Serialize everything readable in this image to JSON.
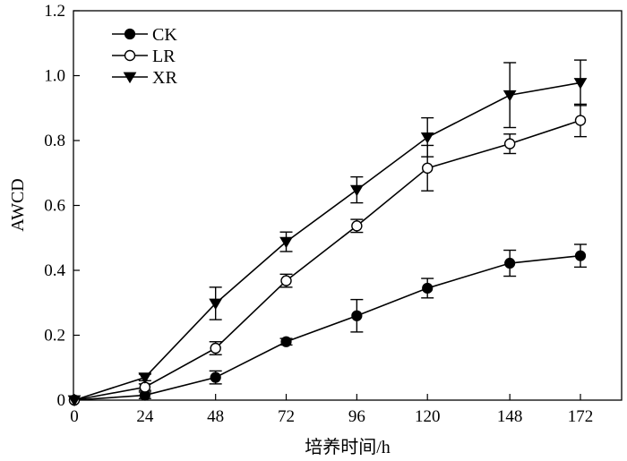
{
  "chart_data": {
    "type": "line",
    "title": "",
    "xlabel": "培养时间/h",
    "ylabel": "AWCD",
    "x": [
      0,
      24,
      48,
      72,
      96,
      120,
      148,
      172
    ],
    "x_tick_labels": [
      "0",
      "24",
      "48",
      "72",
      "96",
      "120",
      "148",
      "172"
    ],
    "ylim": [
      0,
      1.2
    ],
    "y_ticks": [
      0,
      0.2,
      0.4,
      0.6,
      0.8,
      1.0,
      1.2
    ],
    "y_tick_labels": [
      "0",
      "0.2",
      "0.4",
      "0.6",
      "0.8",
      "1.0",
      "1.2"
    ],
    "grid": false,
    "legend_position": "top-left",
    "series": [
      {
        "name": "CK",
        "marker": "filled-circle",
        "values": [
          0.0,
          0.015,
          0.07,
          0.18,
          0.26,
          0.345,
          0.422,
          0.445
        ],
        "errors": [
          0.005,
          0.01,
          0.02,
          0.01,
          0.05,
          0.03,
          0.04,
          0.035
        ]
      },
      {
        "name": "LR",
        "marker": "open-circle",
        "values": [
          0.0,
          0.04,
          0.16,
          0.368,
          0.537,
          0.715,
          0.79,
          0.862
        ],
        "errors": [
          0.005,
          0.01,
          0.02,
          0.02,
          0.02,
          0.07,
          0.03,
          0.05
        ]
      },
      {
        "name": "XR",
        "marker": "filled-triangle-down",
        "values": [
          0.0,
          0.07,
          0.298,
          0.488,
          0.648,
          0.81,
          0.94,
          0.978
        ],
        "errors": [
          0.005,
          0.01,
          0.05,
          0.03,
          0.04,
          0.06,
          0.1,
          0.07
        ]
      }
    ]
  }
}
